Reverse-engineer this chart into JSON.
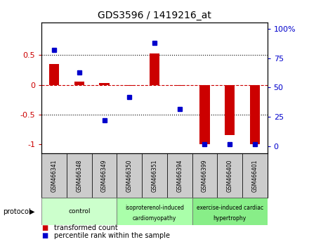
{
  "title": "GDS3596 / 1419216_at",
  "samples": [
    "GSM466341",
    "GSM466348",
    "GSM466349",
    "GSM466350",
    "GSM466351",
    "GSM466394",
    "GSM466399",
    "GSM466400",
    "GSM466401"
  ],
  "transformed_count": [
    0.35,
    0.05,
    0.03,
    -0.02,
    0.53,
    -0.02,
    -1.0,
    -0.85,
    -1.0
  ],
  "percentile_rank": [
    82,
    63,
    22,
    42,
    88,
    32,
    2,
    2,
    2
  ],
  "groups": [
    {
      "label": "control",
      "start": 0,
      "end": 3,
      "color": "#ccffcc"
    },
    {
      "label": "isoproterenol-induced\ncardiomyopathy",
      "start": 3,
      "end": 6,
      "color": "#aaffaa"
    },
    {
      "label": "exercise-induced cardiac\nhypertrophy",
      "start": 6,
      "end": 9,
      "color": "#88ee88"
    }
  ],
  "ylim_left": [
    -1.15,
    1.05
  ],
  "ylim_right": [
    -5.75,
    105.25
  ],
  "yticks_left": [
    -1.0,
    -0.5,
    0.0,
    0.5
  ],
  "yticks_right": [
    0,
    25,
    50,
    75,
    100
  ],
  "ytick_labels_left": [
    "-1",
    "-0.5",
    "0",
    "0.5"
  ],
  "ytick_labels_right": [
    "0",
    "25",
    "50",
    "75",
    "100%"
  ],
  "bar_color": "#cc0000",
  "dot_color": "#0000cc",
  "background_color": "#ffffff",
  "zero_line_color": "#cc0000",
  "sample_box_color": "#cccccc",
  "legend_items": [
    {
      "color": "#cc0000",
      "label": "transformed count"
    },
    {
      "color": "#0000cc",
      "label": "percentile rank within the sample"
    }
  ]
}
